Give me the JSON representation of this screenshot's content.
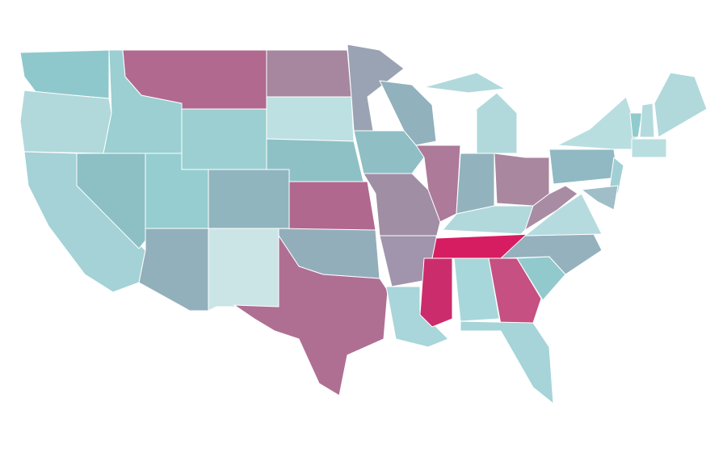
{
  "map": {
    "border_color": "#ffffff",
    "regions": [
      {
        "fill": "#8fc8cc"
      },
      {
        "fill": "#b1d9dc"
      },
      {
        "fill": "#a4d2d6"
      },
      {
        "fill": "#8dc0c4"
      },
      {
        "fill": "#9bcfd2"
      },
      {
        "fill": "#b1698f"
      },
      {
        "fill": "#9ccfd1"
      },
      {
        "fill": "#96cdd0"
      },
      {
        "fill": "#92b0bc"
      },
      {
        "fill": "#90b5bf"
      },
      {
        "fill": "#cbe5e7"
      },
      {
        "fill": "#a6879f"
      },
      {
        "fill": "#bde0e2"
      },
      {
        "fill": "#8ec1c6"
      },
      {
        "fill": "#b0688e"
      },
      {
        "fill": "#93aebb"
      },
      {
        "fill": "#af6f93"
      },
      {
        "fill": "#9aa3b4"
      },
      {
        "fill": "#8fbfc5"
      },
      {
        "fill": "#a08ea5"
      },
      {
        "fill": "#a095ac"
      },
      {
        "fill": "#a8d6da"
      },
      {
        "fill": "#91b1bc"
      },
      {
        "fill": "#ad7a9a"
      },
      {
        "fill": "#b1d9dc"
      },
      {
        "fill": "#b1d9dc"
      },
      {
        "fill": "#92b3be"
      },
      {
        "fill": "#a9879f"
      },
      {
        "fill": "#b1d9dc"
      },
      {
        "fill": "#d71d62"
      },
      {
        "fill": "#cb2d6c"
      },
      {
        "fill": "#a8d7db"
      },
      {
        "fill": "#c55081"
      },
      {
        "fill": "#a6d4d8"
      },
      {
        "fill": "#92c9cc"
      },
      {
        "fill": "#95b1bd"
      },
      {
        "fill": "#b5dbde"
      },
      {
        "fill": "#a78ca3"
      },
      {
        "fill": "#90b9c3"
      },
      {
        "fill": "#b9dee0"
      },
      {
        "fill": "#a1d0d4"
      },
      {
        "fill": "#9fbec8"
      },
      {
        "fill": "#92cbcd"
      },
      {
        "fill": "#b3dbdd"
      },
      {
        "fill": "#b1d9dc"
      },
      {
        "fill": "#b9dee0"
      }
    ]
  }
}
